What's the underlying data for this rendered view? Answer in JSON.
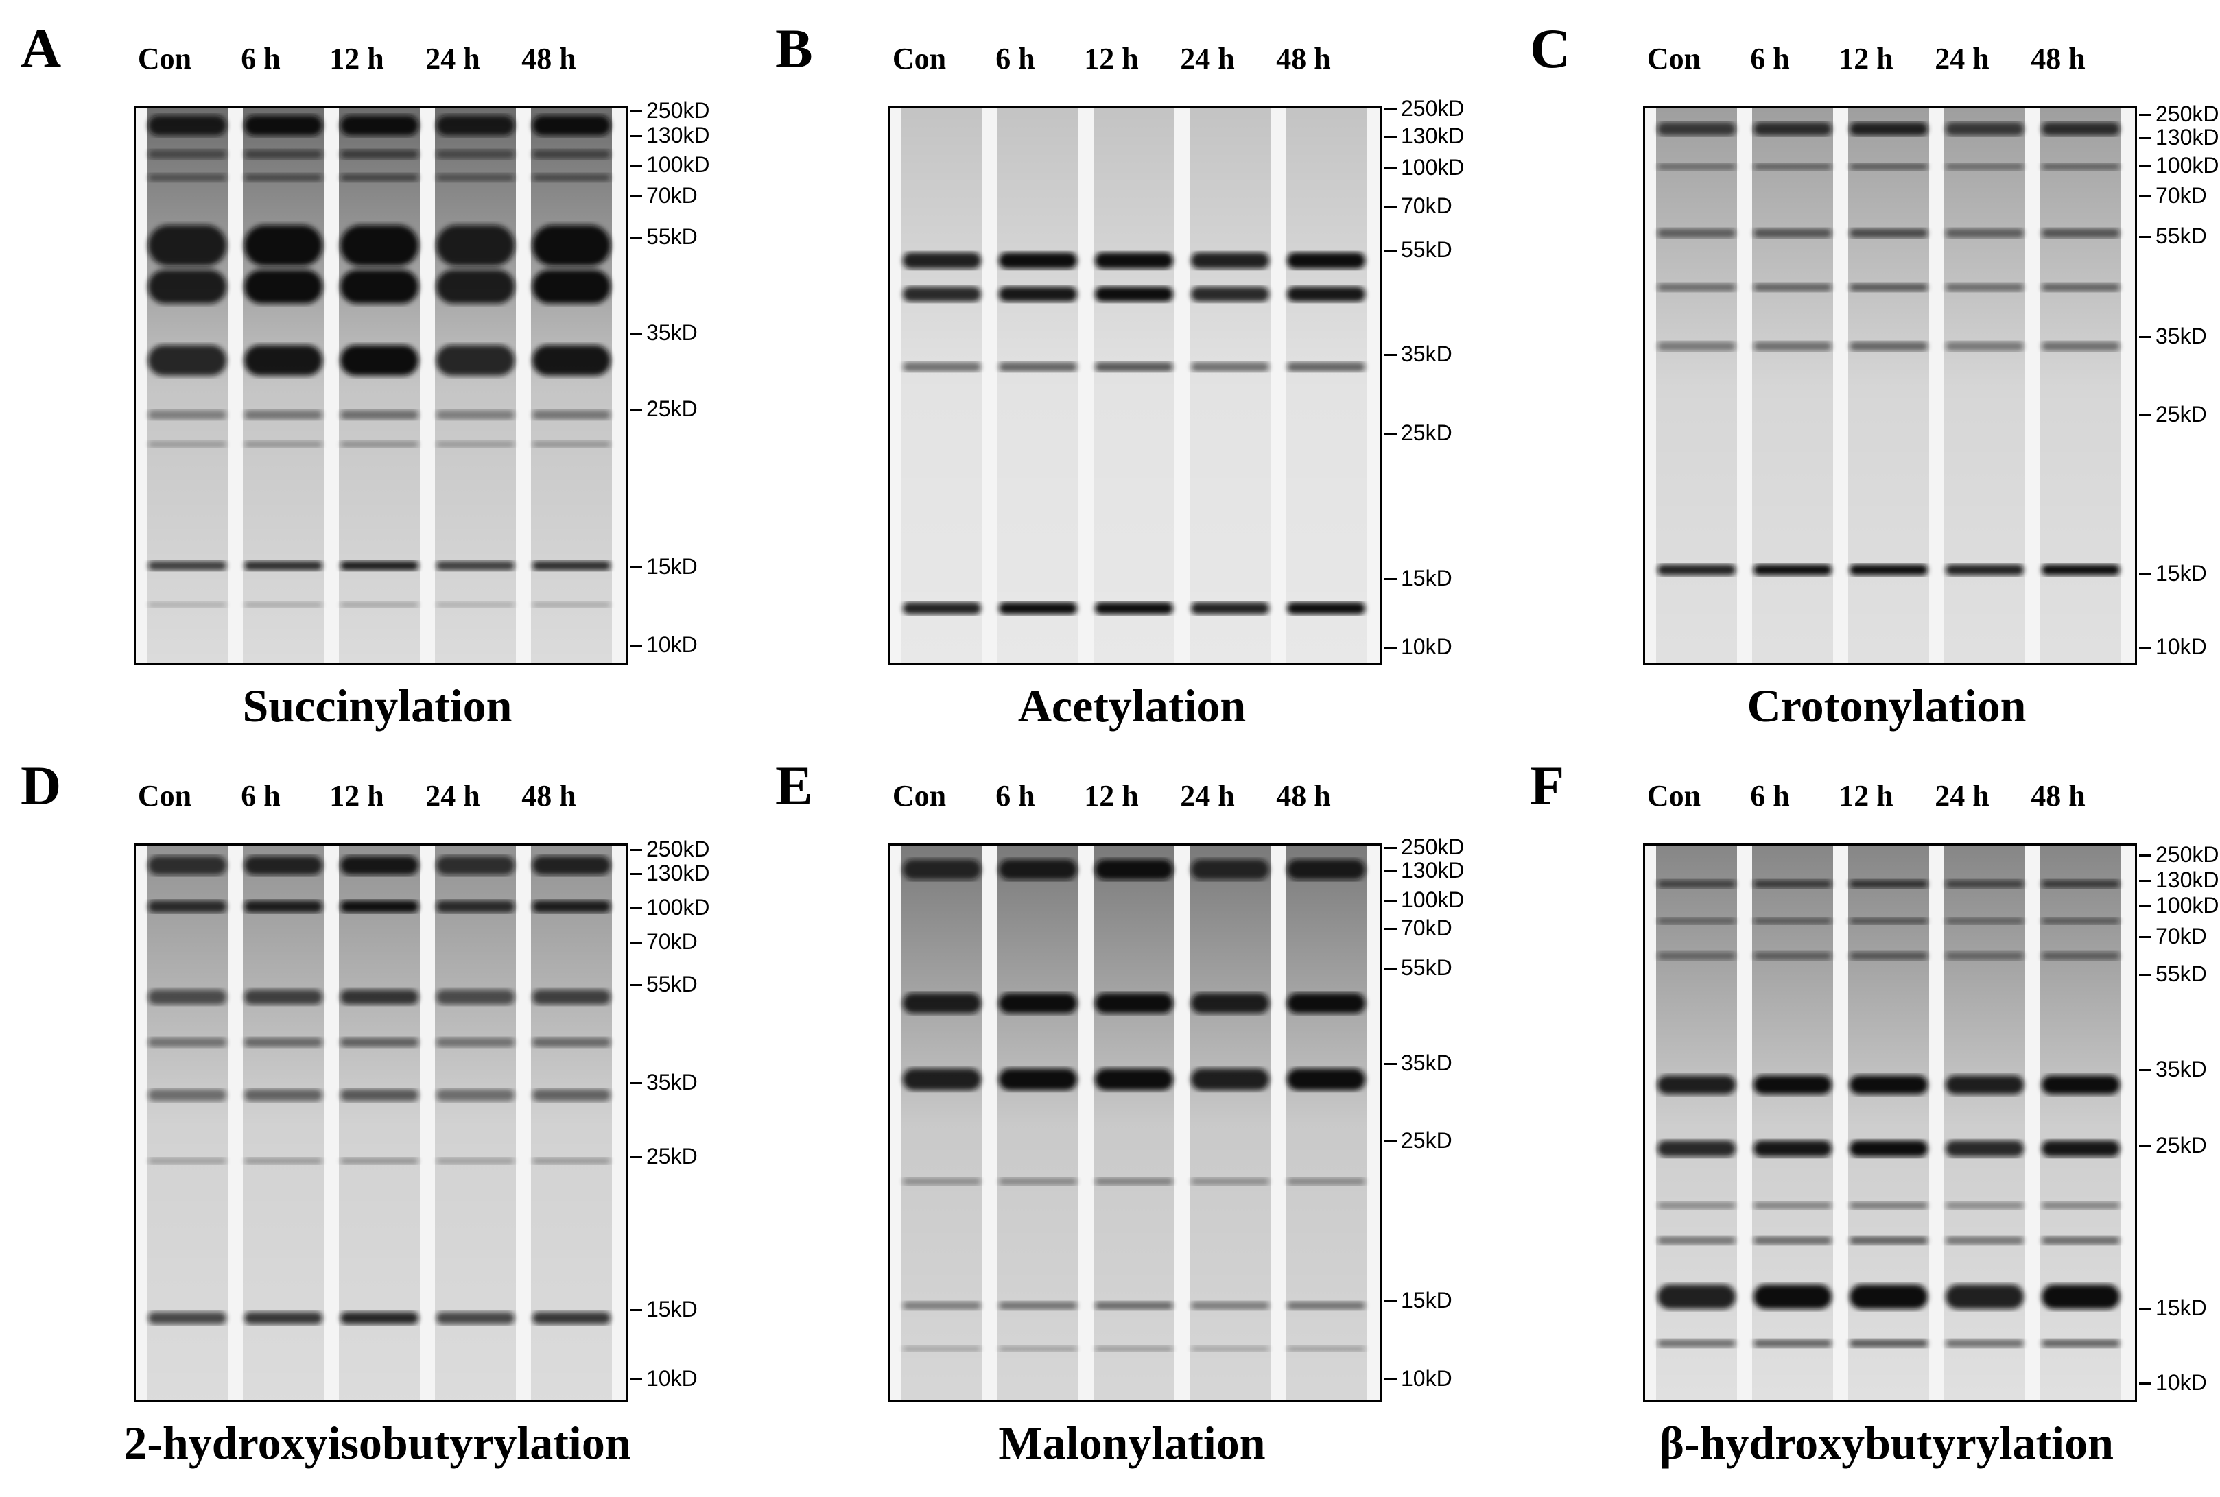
{
  "lanes": [
    "Con",
    "6 h",
    "12 h",
    "24 h",
    "48 h"
  ],
  "marker_labels": [
    "250kD",
    "130kD",
    "100kD",
    "70kD",
    "55kD",
    "35kD",
    "25kD",
    "15kD",
    "10kD"
  ],
  "panels": [
    {
      "letter": "A",
      "title": "Succinylation"
    },
    {
      "letter": "B",
      "title": "Acetylation"
    },
    {
      "letter": "C",
      "title": "Crotonylation"
    },
    {
      "letter": "D",
      "title": "2-hydroxyisobutyrylation"
    },
    {
      "letter": "E",
      "title": "Malonylation"
    },
    {
      "letter": "F",
      "title": "β-hydroxybutyrylation"
    }
  ],
  "colors": {
    "band": "#0a0a0a",
    "background_light": "#f4f4f4",
    "background_dark": "#d0d0d0"
  }
}
